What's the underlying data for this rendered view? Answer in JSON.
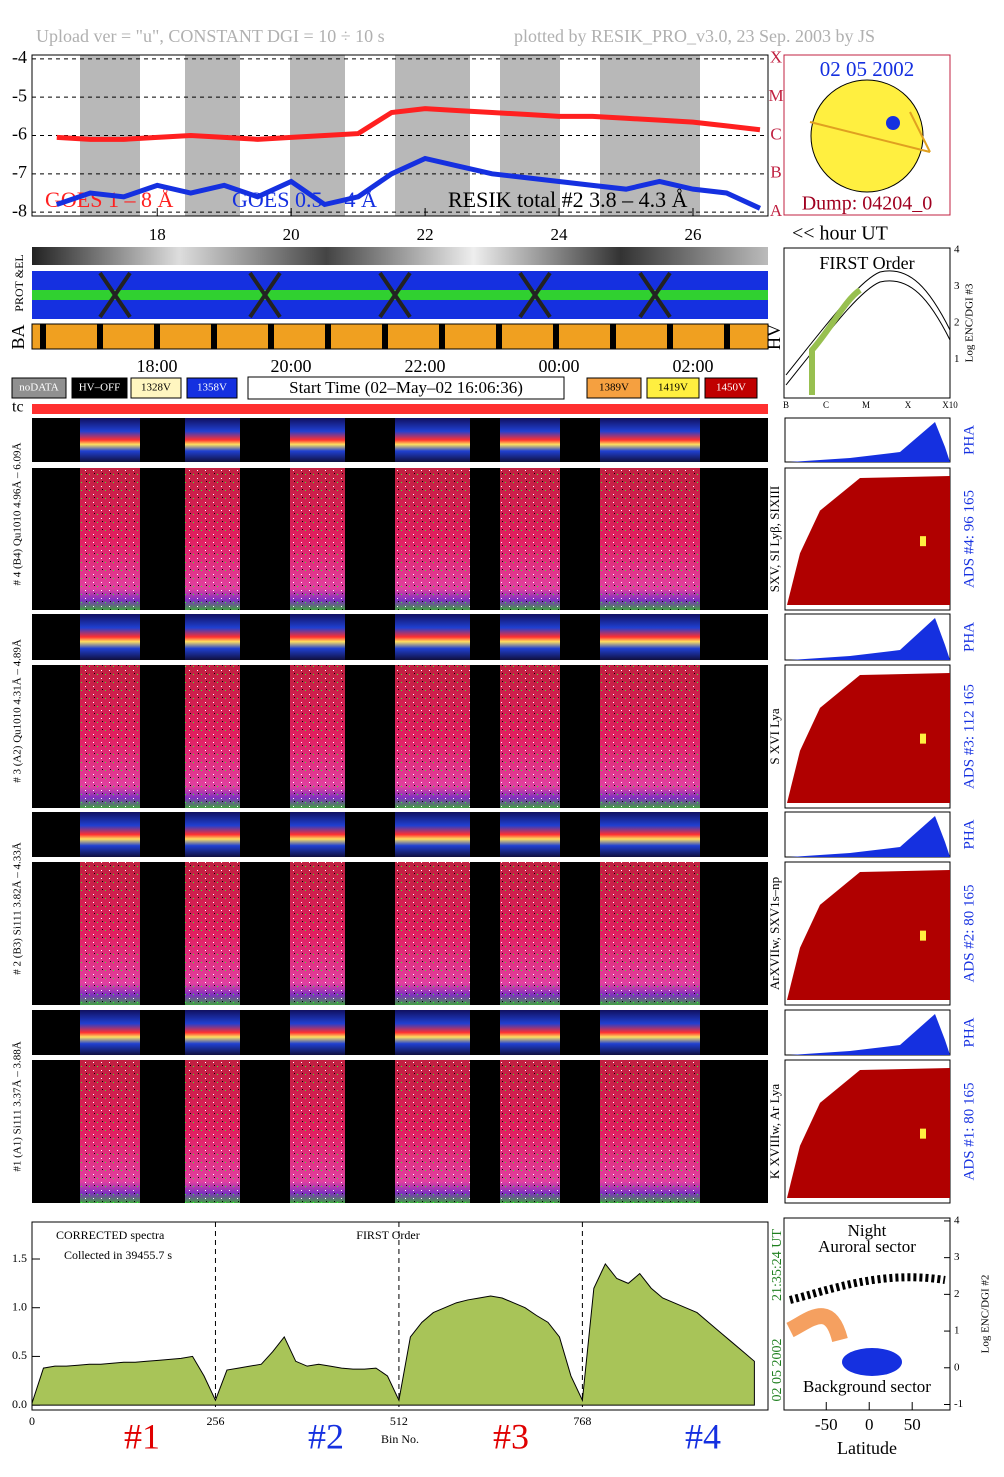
{
  "header": {
    "upload": "Upload ver = \"u\", CONSTANT  DGI =  10 ÷  10 s",
    "plotted": "plotted by RESIK_PRO_v3.0, 23 Sep. 2003 by JS"
  },
  "chart_data": [
    {
      "type": "line",
      "x": [
        16.5,
        17,
        17.5,
        18,
        18.5,
        19,
        19.5,
        20,
        20.5,
        21,
        21.5,
        22,
        22.5,
        23,
        23.5,
        24,
        24.5,
        25,
        25.5,
        26,
        26.5,
        27
      ],
      "series": [
        {
          "name": "GOES 1 – 8 Å",
          "color": "#ff2020",
          "values": [
            -6.05,
            -6.1,
            -6.1,
            -6.05,
            -6.0,
            -6.05,
            -6.1,
            -6.05,
            -6.0,
            -5.95,
            -5.4,
            -5.3,
            -5.35,
            -5.4,
            -5.45,
            -5.5,
            -5.5,
            -5.55,
            -5.6,
            -5.65,
            -5.75,
            -5.85
          ]
        },
        {
          "name": "GOES 0.5 – 4 Å",
          "color": "#1530e0",
          "values": [
            -7.8,
            -7.5,
            -7.6,
            -7.3,
            -7.5,
            -7.3,
            -7.6,
            -7.2,
            -7.8,
            -7.6,
            -7.0,
            -6.6,
            -6.8,
            -7.0,
            -7.1,
            -7.2,
            -7.3,
            -7.4,
            -7.2,
            -7.4,
            -7.5,
            -7.9
          ]
        },
        {
          "name": "RESIK total #2  3.8 – 4.3 Å",
          "color": "#000000",
          "values": [
            null,
            null,
            null,
            null,
            null,
            null,
            null,
            null,
            null,
            null,
            null,
            null,
            null,
            null,
            null,
            null,
            null,
            null,
            null,
            null,
            null,
            null
          ]
        }
      ],
      "xlim": [
        16.13,
        27.12
      ],
      "xticks": [
        18,
        20,
        22,
        24,
        26
      ],
      "ylim": [
        -8.1,
        -3.9
      ],
      "yticks": [
        -4,
        -5,
        -6,
        -7,
        -8
      ],
      "y2lim": [
        -8.1,
        -3.9
      ],
      "y2ticks": [
        {
          "value": -8,
          "label": "A"
        },
        {
          "value": -7,
          "label": "B"
        },
        {
          "value": -6,
          "label": "C"
        },
        {
          "value": -5,
          "label": "M"
        },
        {
          "value": -4,
          "label": "X"
        }
      ]
    },
    {
      "type": "area",
      "x": [
        0,
        16,
        32,
        48,
        64,
        80,
        96,
        112,
        128,
        144,
        160,
        176,
        192,
        208,
        224,
        240,
        256,
        272,
        288,
        304,
        320,
        336,
        352,
        368,
        384,
        400,
        416,
        432,
        448,
        464,
        480,
        496,
        512,
        528,
        544,
        560,
        576,
        592,
        608,
        624,
        640,
        656,
        672,
        688,
        704,
        720,
        736,
        752,
        768,
        784,
        800,
        816,
        832,
        848,
        864,
        880,
        896,
        912,
        928,
        944,
        960,
        976,
        992,
        1008
      ],
      "values": [
        0.02,
        0.38,
        0.4,
        0.4,
        0.41,
        0.42,
        0.42,
        0.43,
        0.44,
        0.44,
        0.45,
        0.46,
        0.47,
        0.48,
        0.5,
        0.3,
        0.05,
        0.36,
        0.38,
        0.4,
        0.42,
        0.55,
        0.7,
        0.45,
        0.4,
        0.42,
        0.4,
        0.38,
        0.37,
        0.37,
        0.38,
        0.3,
        0.05,
        0.7,
        0.85,
        0.95,
        1.0,
        1.05,
        1.08,
        1.1,
        1.12,
        1.1,
        1.05,
        1.0,
        0.92,
        0.85,
        0.7,
        0.3,
        0.05,
        1.2,
        1.45,
        1.3,
        1.25,
        1.35,
        1.2,
        1.1,
        1.05,
        1.0,
        0.95,
        0.85,
        0.75,
        0.65,
        0.55,
        0.45
      ],
      "color": "#a8c458",
      "xlim": [
        0,
        1027
      ],
      "xticks": [
        0,
        256,
        512,
        768
      ],
      "ylim": [
        -0.05,
        1.88
      ],
      "yticks": [
        {
          "value": 0,
          "label": "0.0"
        },
        0.5,
        {
          "value": 1,
          "label": "1.0"
        },
        1.5
      ],
      "xlabel": "Bin No.",
      "annotations": [
        "CORRECTED spectra",
        "Collected in 39455.7 s",
        "FIRST Order"
      ],
      "segments": [
        {
          "label": "#1",
          "color": "#e00000"
        },
        {
          "label": "#2",
          "color": "#1530e0"
        },
        {
          "label": "#3",
          "color": "#e00000"
        },
        {
          "label": "#4",
          "color": "#1530e0"
        }
      ],
      "date": "02 05 2002",
      "time": "21:35:24 UT"
    }
  ],
  "sun_panel": {
    "date": "02 05 2002",
    "dump": "Dump: 04204_0"
  },
  "hour_label": "<< hour UT",
  "strips": {
    "prot": "PROT &EL",
    "ba": "BA",
    "hv": "HV"
  },
  "time_labels": [
    "18:00",
    "20:00",
    "22:00",
    "00:00",
    "02:00"
  ],
  "status_legend": [
    {
      "label": "noDATA",
      "color": "#909090"
    },
    {
      "label": "HV–OFF",
      "color": "#000000"
    },
    {
      "label": "1328V",
      "color": "#fff6c0"
    },
    {
      "label": "1358V",
      "color": "#1530e0"
    },
    {
      "label": "1389V",
      "color": "#f5a040"
    },
    {
      "label": "1419V",
      "color": "#ffef40"
    },
    {
      "label": "1450V",
      "color": "#c00000"
    }
  ],
  "start_time": "Start Time (02–May–02 16:06:36)",
  "tc": "tc",
  "channels": [
    {
      "label": "# 4 (B4) Qu1010 4.96Å – 6.09Å",
      "lines": "SXV, SI Lyβ, SIXIII",
      "ads": "ADS #4:   96 165",
      "pha": "PHA"
    },
    {
      "label": "# 3 (A2) Qu1010 4.31Å – 4.89Å",
      "lines": "S XVI Lya",
      "ads": "ADS #3:   112 165",
      "pha": "PHA"
    },
    {
      "label": "# 2 (B3) Si111  3.82Å – 4.33Å",
      "lines": "ArXVIIw, SXV1s–np",
      "ads": "ADS #2:   80 165",
      "pha": "PHA"
    },
    {
      "label": "#1 (A1) Si111  3.37Å – 3.88Å",
      "lines": "K XVIIIw, Ar Lya",
      "ads": "ADS #1:   80 165",
      "pha": "PHA"
    }
  ],
  "first_order_panel": {
    "title": "FIRST Order",
    "ylabel": "Log ENC/DGI #3",
    "ylim": [
      -0.05,
      4.05
    ],
    "yticks": [
      1,
      2,
      3,
      4
    ],
    "xlabels": [
      "B",
      "C",
      "M",
      "X",
      "X10"
    ]
  },
  "latitude_panel": {
    "title": "Night",
    "top_label": "Auroral sector",
    "bottom_label": "Background sector",
    "ylabel": "Log ENC/DGI #2",
    "xlabel": "Latitude",
    "xlim": [
      -98,
      94
    ],
    "xticks": [
      -50,
      0,
      50
    ],
    "ylim": [
      -1.15,
      4.08
    ],
    "yticks": [
      -1,
      0,
      1,
      2,
      3,
      4
    ]
  }
}
